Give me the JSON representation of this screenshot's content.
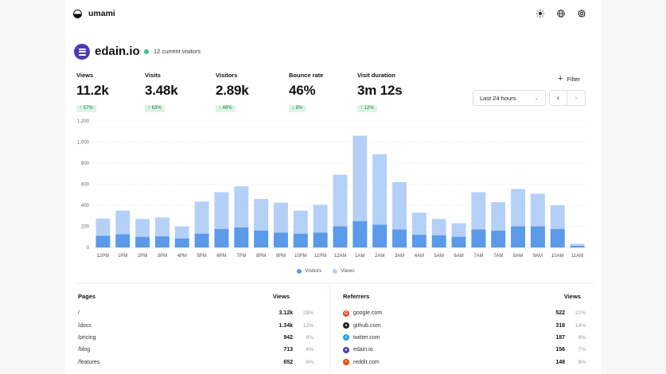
{
  "app": {
    "name": "umami"
  },
  "nav_icons": [
    "sun-icon",
    "globe-icon",
    "gear-icon"
  ],
  "site": {
    "name": "edain.io",
    "current_visitors": "12 current visitors"
  },
  "metrics": [
    {
      "label": "Views",
      "value": "11.2k",
      "change": "↑ 57%",
      "trend": "up"
    },
    {
      "label": "Visits",
      "value": "3.48k",
      "change": "↑ 63%",
      "trend": "up"
    },
    {
      "label": "Visitors",
      "value": "2.89k",
      "change": "↑ 48%",
      "trend": "up"
    },
    {
      "label": "Bounce rate",
      "value": "46%",
      "change": "↓ 8%",
      "trend": "down"
    },
    {
      "label": "Visit duration",
      "value": "3m 12s",
      "change": "↑ 12%",
      "trend": "up"
    }
  ],
  "controls": {
    "filter_label": "Filter",
    "date_range": "Last 24 hours"
  },
  "chart_data": {
    "type": "bar",
    "categories": [
      "12PM",
      "1PM",
      "2PM",
      "3PM",
      "4PM",
      "5PM",
      "6PM",
      "7PM",
      "8PM",
      "9PM",
      "10PM",
      "11PM",
      "12AM",
      "1AM",
      "2AM",
      "3AM",
      "4AM",
      "5AM",
      "6AM",
      "7AM",
      "7AM",
      "8AM",
      "9AM",
      "10AM",
      "11AM"
    ],
    "series": [
      {
        "name": "Visitors",
        "values": [
          110,
          125,
          100,
          105,
          85,
          130,
          175,
          190,
          160,
          140,
          130,
          140,
          200,
          250,
          215,
          170,
          120,
          115,
          100,
          170,
          160,
          200,
          200,
          175,
          15
        ]
      },
      {
        "name": "Views",
        "values": [
          275,
          350,
          270,
          285,
          200,
          435,
          525,
          580,
          460,
          425,
          350,
          405,
          690,
          1060,
          885,
          620,
          330,
          270,
          230,
          525,
          430,
          555,
          510,
          400,
          35
        ]
      }
    ],
    "stacked": false,
    "ylim": [
      0,
      1200
    ],
    "yticks": [
      "0",
      "200",
      "400",
      "600",
      "800",
      "1,000",
      "1,200"
    ],
    "grid": true,
    "legend_position": "bottom",
    "colors": {
      "Visitors": "#5a9ae8",
      "Views": "#b4d0f7"
    }
  },
  "pages": {
    "title": "Pages",
    "metric": "Views",
    "rows": [
      {
        "name": "/",
        "value": "3.12k",
        "pct": "28%"
      },
      {
        "name": "/docs",
        "value": "1.34k",
        "pct": "12%"
      },
      {
        "name": "/pricing",
        "value": "942",
        "pct": "8%"
      },
      {
        "name": "/blog",
        "value": "713",
        "pct": "6%"
      },
      {
        "name": "/features",
        "value": "652",
        "pct": "6%"
      }
    ]
  },
  "referrers": {
    "title": "Referrers",
    "metric": "Views",
    "rows": [
      {
        "name": "google.com",
        "value": "522",
        "pct": "22%",
        "icon": "google-icon",
        "color": "#ea4335",
        "glyph": "G"
      },
      {
        "name": "github.com",
        "value": "318",
        "pct": "14%",
        "icon": "github-icon",
        "color": "#222222",
        "glyph": "●"
      },
      {
        "name": "twitter.com",
        "value": "187",
        "pct": "8%",
        "icon": "twitter-icon",
        "color": "#1da1f2",
        "glyph": "t"
      },
      {
        "name": "edain.io",
        "value": "156",
        "pct": "7%",
        "icon": "edain-icon",
        "color": "#4f3ab3",
        "glyph": "e"
      },
      {
        "name": "reddit.com",
        "value": "148",
        "pct": "6%",
        "icon": "reddit-icon",
        "color": "#ff4500",
        "glyph": "r"
      }
    ]
  }
}
